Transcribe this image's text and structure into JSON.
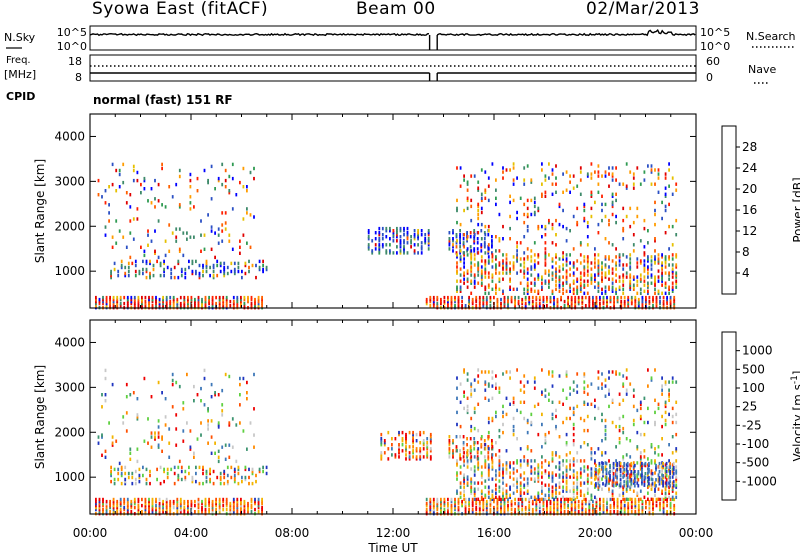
{
  "header": {
    "title": "Syowa East (fitACF)",
    "beam": "Beam 00",
    "date": "02/Mar/2013"
  },
  "status_panel": {
    "nsky_label": "N.Sky",
    "nsky_ticks": [
      "10^5",
      "10^0"
    ],
    "nsearch_label": "N.Search",
    "nsearch_ticks": [
      "10^5",
      "10^0"
    ],
    "freq_label": "Freq.",
    "freq_unit": "[MHz]",
    "freq_ticks": [
      "18",
      "8"
    ],
    "nave_label": "Nave",
    "nave_ticks": [
      "60",
      "0"
    ],
    "cpid_label": "CPID",
    "cpid_value": "normal (fast) 151 RF"
  },
  "x_axis": {
    "label": "Time UT",
    "ticks": [
      "00:00",
      "04:00",
      "08:00",
      "12:00",
      "16:00",
      "20:00",
      "00:00"
    ]
  },
  "colors": {
    "power": [
      "#0000ff",
      "#2b50c4",
      "#3e8a6a",
      "#2f9a52",
      "#e6c000",
      "#ff9c00",
      "#ff6000",
      "#ff2000",
      "#e00000"
    ],
    "velocity": [
      "#1f35c0",
      "#3f78b8",
      "#3d9470",
      "#5ed040",
      "#c8c8c8",
      "#f2b400",
      "#ff8a00",
      "#ff5000",
      "#ee0000"
    ]
  },
  "chart_data": [
    {
      "type": "heatmap",
      "title": "Power",
      "xlabel": "Time UT",
      "ylabel": "Slant Range [km]",
      "xlim": [
        0,
        24
      ],
      "ylim": [
        180,
        4500
      ],
      "y_ticks": [
        "1000",
        "2000",
        "3000",
        "4000"
      ],
      "colorbar": {
        "label": "Power [dB]",
        "range": [
          0,
          32
        ],
        "ticks": [
          "4",
          "8",
          "12",
          "16",
          "20",
          "24",
          "28"
        ]
      },
      "regions": [
        {
          "t": [
            0.2,
            6.8
          ],
          "r": [
            180,
            420
          ],
          "level": "high",
          "density": 0.85
        },
        {
          "t": [
            0.8,
            7.0
          ],
          "r": [
            850,
            1250
          ],
          "level": "low",
          "density": 0.35
        },
        {
          "t": [
            0.3,
            6.5
          ],
          "r": [
            1300,
            3400
          ],
          "level": "mid",
          "density": 0.07
        },
        {
          "t": [
            11.0,
            13.5
          ],
          "r": [
            1400,
            1950
          ],
          "level": "low",
          "density": 0.5
        },
        {
          "t": [
            14.2,
            16.0
          ],
          "r": [
            1400,
            1900
          ],
          "level": "low",
          "density": 0.45
        },
        {
          "t": [
            13.3,
            23.2
          ],
          "r": [
            180,
            450
          ],
          "level": "high",
          "density": 0.8
        },
        {
          "t": [
            14.5,
            23.2
          ],
          "r": [
            500,
            1400
          ],
          "level": "mid",
          "density": 0.45
        },
        {
          "t": [
            14.5,
            23.2
          ],
          "r": [
            1400,
            3400
          ],
          "level": "mid",
          "density": 0.12
        }
      ]
    },
    {
      "type": "heatmap",
      "title": "Velocity",
      "xlabel": "Time UT",
      "ylabel": "Slant Range [km]",
      "xlim": [
        0,
        24
      ],
      "ylim": [
        180,
        4500
      ],
      "y_ticks": [
        "1000",
        "2000",
        "3000",
        "4000"
      ],
      "colorbar": {
        "label": "Velocity [m s-1]",
        "range": [
          -1500,
          1500
        ],
        "ticks": [
          "1000",
          "500",
          "100",
          "25",
          "-25",
          "-100",
          "-500",
          "-1000"
        ]
      },
      "regions": [
        {
          "t": [
            0.2,
            6.8
          ],
          "r": [
            180,
            500
          ],
          "level": "negative",
          "density": 0.8
        },
        {
          "t": [
            0.8,
            7.0
          ],
          "r": [
            850,
            1250
          ],
          "level": "mixed",
          "density": 0.35
        },
        {
          "t": [
            0.3,
            6.5
          ],
          "r": [
            1300,
            3400
          ],
          "level": "mixed",
          "density": 0.07
        },
        {
          "t": [
            11.5,
            13.5
          ],
          "r": [
            1400,
            2000
          ],
          "level": "negative",
          "density": 0.5
        },
        {
          "t": [
            14.2,
            16.0
          ],
          "r": [
            1400,
            1900
          ],
          "level": "negative",
          "density": 0.45
        },
        {
          "t": [
            13.3,
            23.2
          ],
          "r": [
            180,
            500
          ],
          "level": "negative",
          "density": 0.8
        },
        {
          "t": [
            14.5,
            23.2
          ],
          "r": [
            500,
            1400
          ],
          "level": "mixed",
          "density": 0.45
        },
        {
          "t": [
            20.0,
            23.2
          ],
          "r": [
            800,
            1300
          ],
          "level": "positive",
          "density": 0.6
        },
        {
          "t": [
            14.5,
            23.2
          ],
          "r": [
            1400,
            3400
          ],
          "level": "mixed",
          "density": 0.12
        }
      ]
    }
  ]
}
